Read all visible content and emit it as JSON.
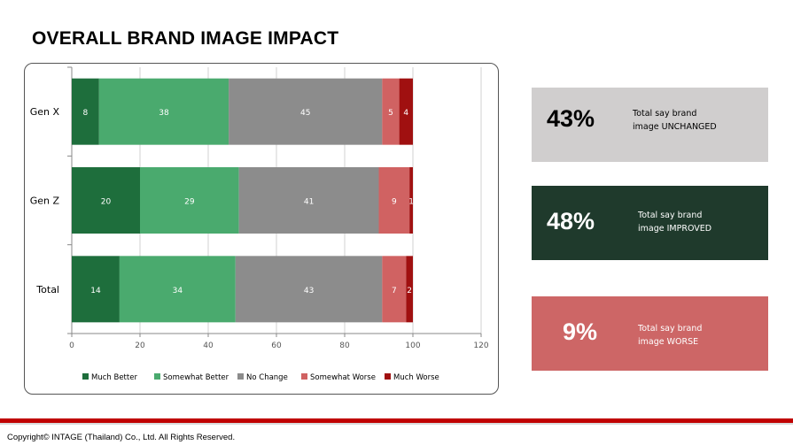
{
  "page": {
    "title": "OVERALL BRAND IMAGE IMPACT",
    "copyright": "Copyright© INTAGE (Thailand) Co., Ltd. All Rights Reserved."
  },
  "kpis": [
    {
      "value": "43%",
      "line1": "Total say brand",
      "line2": "image UNCHANGED",
      "bg": "#d0cece",
      "fg": "#000000"
    },
    {
      "value": "48%",
      "line1": "Total say brand",
      "line2": "image IMPROVED",
      "bg": "#1f3a2c",
      "fg": "#ffffff"
    },
    {
      "value": "9%",
      "line1": "Total say brand",
      "line2": "image WORSE",
      "bg": "#cd6666",
      "fg": "#ffffff"
    }
  ],
  "chart_data": {
    "type": "bar",
    "orientation": "horizontal",
    "stacked": true,
    "categories": [
      "Gen X",
      "Gen Z",
      "Total"
    ],
    "series": [
      {
        "name": "Much Better",
        "color": "#1e6e3c",
        "values": [
          8,
          20,
          14
        ]
      },
      {
        "name": "Somewhat Better",
        "color": "#4aaa6e",
        "values": [
          38,
          29,
          34
        ]
      },
      {
        "name": "No Change",
        "color": "#8c8c8c",
        "values": [
          45,
          41,
          43
        ]
      },
      {
        "name": "Somewhat Worse",
        "color": "#d06262",
        "values": [
          5,
          9,
          7
        ]
      },
      {
        "name": "Much Worse",
        "color": "#a01010",
        "values": [
          4,
          1,
          2
        ]
      }
    ],
    "xlim": [
      0,
      120
    ],
    "xticks": [
      "0",
      "20",
      "40",
      "60",
      "80",
      "100",
      "120"
    ],
    "grid": true,
    "legend": "bottom"
  }
}
